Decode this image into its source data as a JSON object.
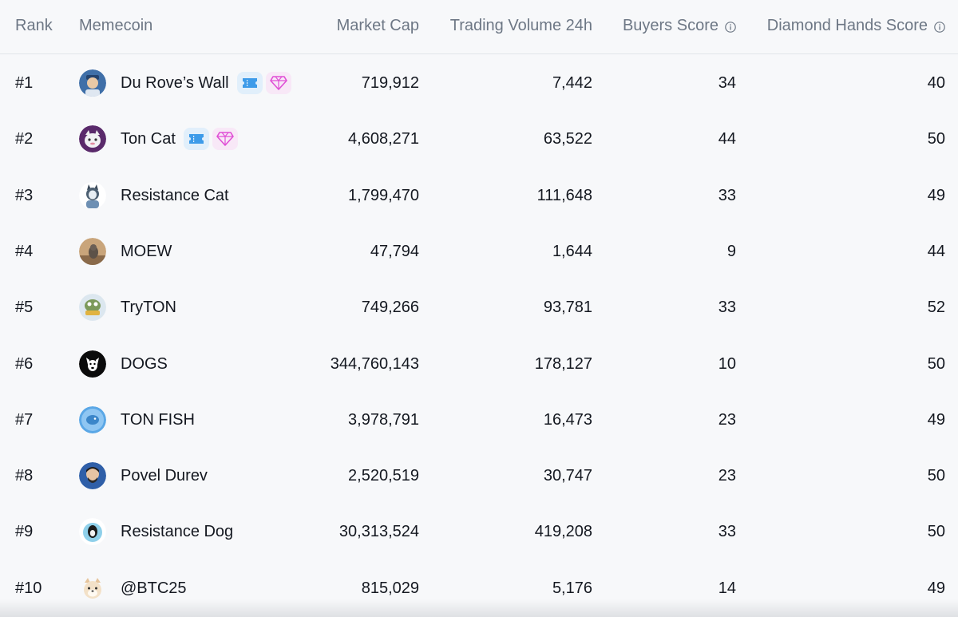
{
  "headers": {
    "rank": "Rank",
    "memecoin": "Memecoin",
    "market_cap": "Market Cap",
    "volume": "Trading Volume 24h",
    "buyers": "Buyers Score",
    "diamond": "Diamond Hands Score"
  },
  "colors": {
    "header_text": "#6d7785",
    "ticket_badge_bg": "#e1effb",
    "ticket_icon": "#3d9be9",
    "gem_badge_bg": "#f8e8f7",
    "gem_icon": "#e04fd6"
  },
  "rows": [
    {
      "rank": "#1",
      "name": "Du Rove’s Wall",
      "market_cap": "719,912",
      "volume": "7,442",
      "buyers": "34",
      "diamond": "40",
      "badges": [
        "ticket-icon",
        "gem-icon"
      ],
      "avatar_icon": "du-roves-wall-avatar"
    },
    {
      "rank": "#2",
      "name": "Ton Cat",
      "market_cap": "4,608,271",
      "volume": "63,522",
      "buyers": "44",
      "diamond": "50",
      "badges": [
        "ticket-icon",
        "gem-icon"
      ],
      "avatar_icon": "ton-cat-avatar"
    },
    {
      "rank": "#3",
      "name": "Resistance Cat",
      "market_cap": "1,799,470",
      "volume": "111,648",
      "buyers": "33",
      "diamond": "49",
      "badges": [],
      "avatar_icon": "resistance-cat-avatar"
    },
    {
      "rank": "#4",
      "name": "MOEW",
      "market_cap": "47,794",
      "volume": "1,644",
      "buyers": "9",
      "diamond": "44",
      "badges": [],
      "avatar_icon": "moew-avatar"
    },
    {
      "rank": "#5",
      "name": "TryTON",
      "market_cap": "749,266",
      "volume": "93,781",
      "buyers": "33",
      "diamond": "52",
      "badges": [],
      "avatar_icon": "tryton-avatar"
    },
    {
      "rank": "#6",
      "name": "DOGS",
      "market_cap": "344,760,143",
      "volume": "178,127",
      "buyers": "10",
      "diamond": "50",
      "badges": [],
      "avatar_icon": "dogs-avatar"
    },
    {
      "rank": "#7",
      "name": "TON FISH",
      "market_cap": "3,978,791",
      "volume": "16,473",
      "buyers": "23",
      "diamond": "49",
      "badges": [],
      "avatar_icon": "ton-fish-avatar"
    },
    {
      "rank": "#8",
      "name": "Povel Durev",
      "market_cap": "2,520,519",
      "volume": "30,747",
      "buyers": "23",
      "diamond": "50",
      "badges": [],
      "avatar_icon": "povel-durev-avatar"
    },
    {
      "rank": "#9",
      "name": "Resistance Dog",
      "market_cap": "30,313,524",
      "volume": "419,208",
      "buyers": "33",
      "diamond": "50",
      "badges": [],
      "avatar_icon": "resistance-dog-avatar"
    },
    {
      "rank": "#10",
      "name": "@BTC25",
      "market_cap": "815,029",
      "volume": "5,176",
      "buyers": "14",
      "diamond": "49",
      "badges": [],
      "avatar_icon": "btc25-avatar"
    }
  ]
}
